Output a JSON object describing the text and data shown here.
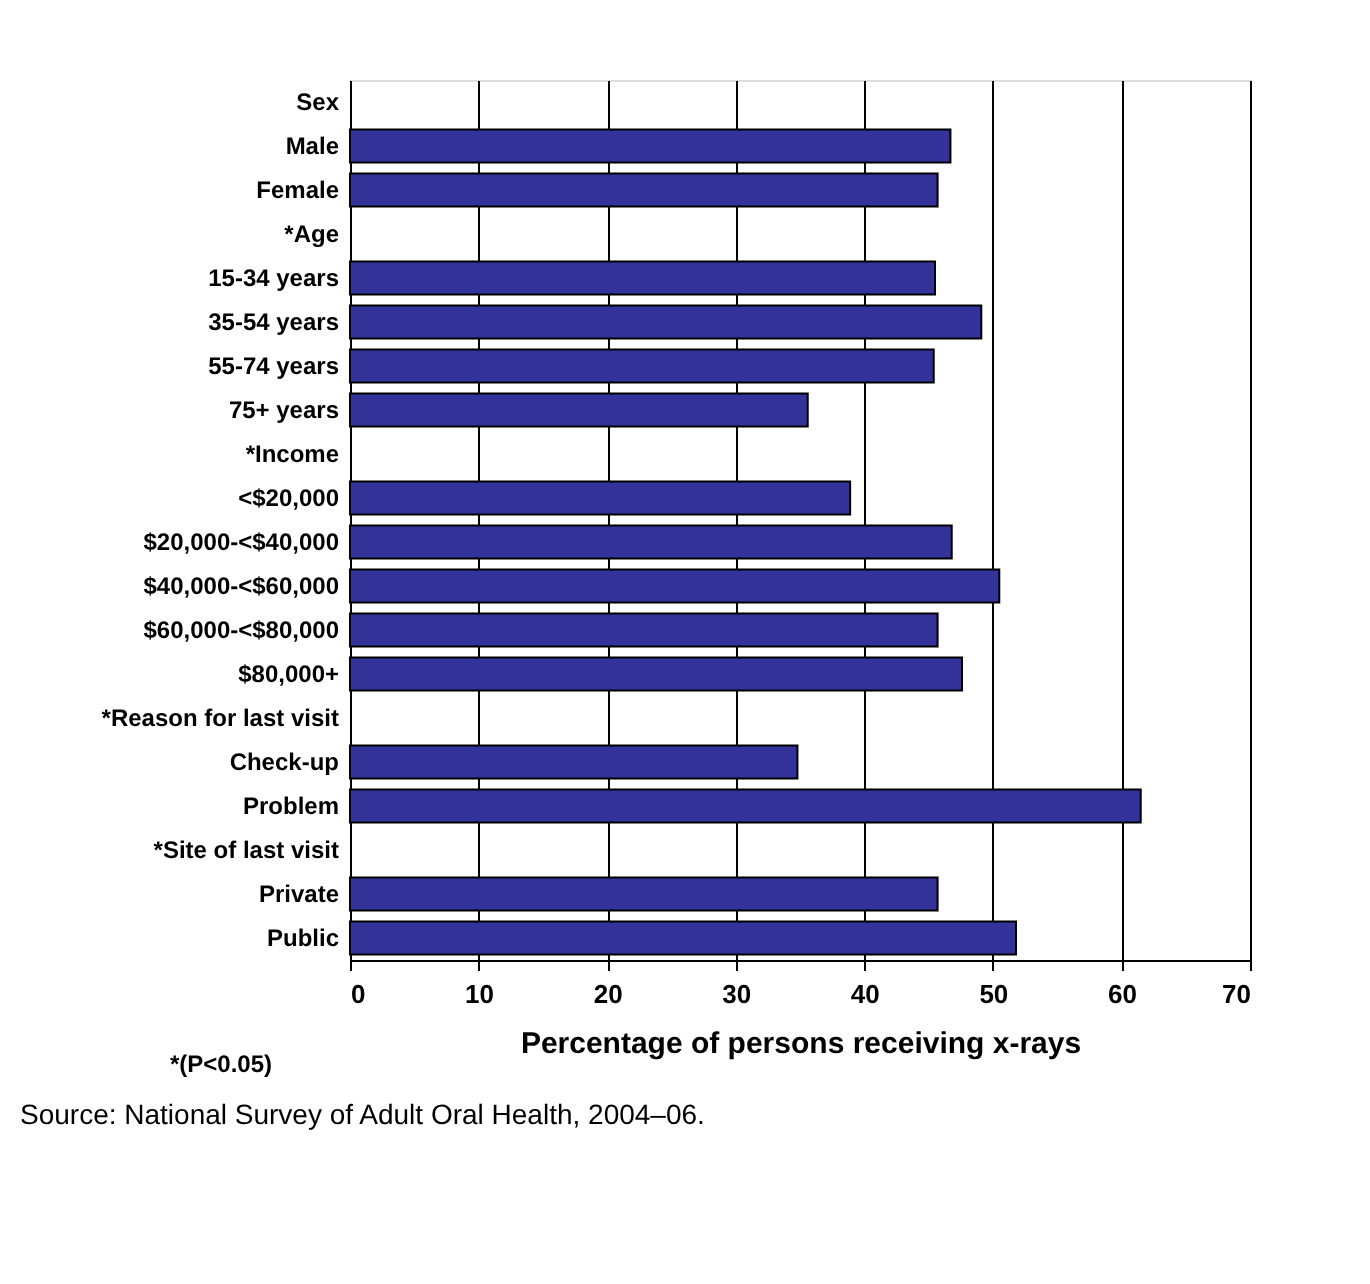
{
  "chart_data": {
    "type": "bar",
    "orientation": "horizontal",
    "xlabel": "Percentage of persons receiving x-rays",
    "categories": [
      "Sex",
      "Male",
      "Female",
      "*Age",
      "15-34 years",
      "35-54 years",
      "55-74 years",
      "75+ years",
      "*Income",
      "<$20,000",
      "$20,000-<$40,000",
      "$40,000-<$60,000",
      "$60,000-<$80,000",
      "$80,000+",
      "*Reason for last visit",
      "Check-up",
      "Problem",
      "*Site of last visit",
      "Private",
      "Public"
    ],
    "values": [
      null,
      46.7,
      45.7,
      null,
      45.5,
      49.1,
      45.4,
      35.6,
      null,
      38.9,
      46.8,
      50.5,
      45.7,
      47.6,
      null,
      34.8,
      61.5,
      null,
      45.7,
      51.8
    ],
    "color": "#333399",
    "xlim": [
      0,
      70
    ],
    "xticks": [
      0,
      10,
      20,
      30,
      40,
      50,
      60,
      70
    ],
    "grid": "x",
    "annotations": [
      "*(P<0.05)",
      "Source:    National Survey of Adult Oral Health, 2004–06."
    ]
  }
}
